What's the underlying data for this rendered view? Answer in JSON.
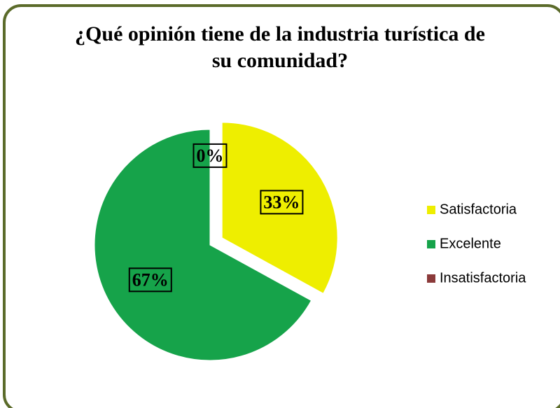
{
  "chart_data": {
    "type": "pie",
    "title": "¿Qué opinión tiene de la industria turística de su comunidad?",
    "categories": [
      "Satisfactoria",
      "Excelente",
      "Insatisfactoria"
    ],
    "values": [
      33,
      67,
      0
    ],
    "value_labels": [
      "33%",
      "67%",
      "0%"
    ],
    "colors": [
      "#eeee00",
      "#16a34a",
      "#8b3a3a"
    ],
    "legend": "right"
  }
}
